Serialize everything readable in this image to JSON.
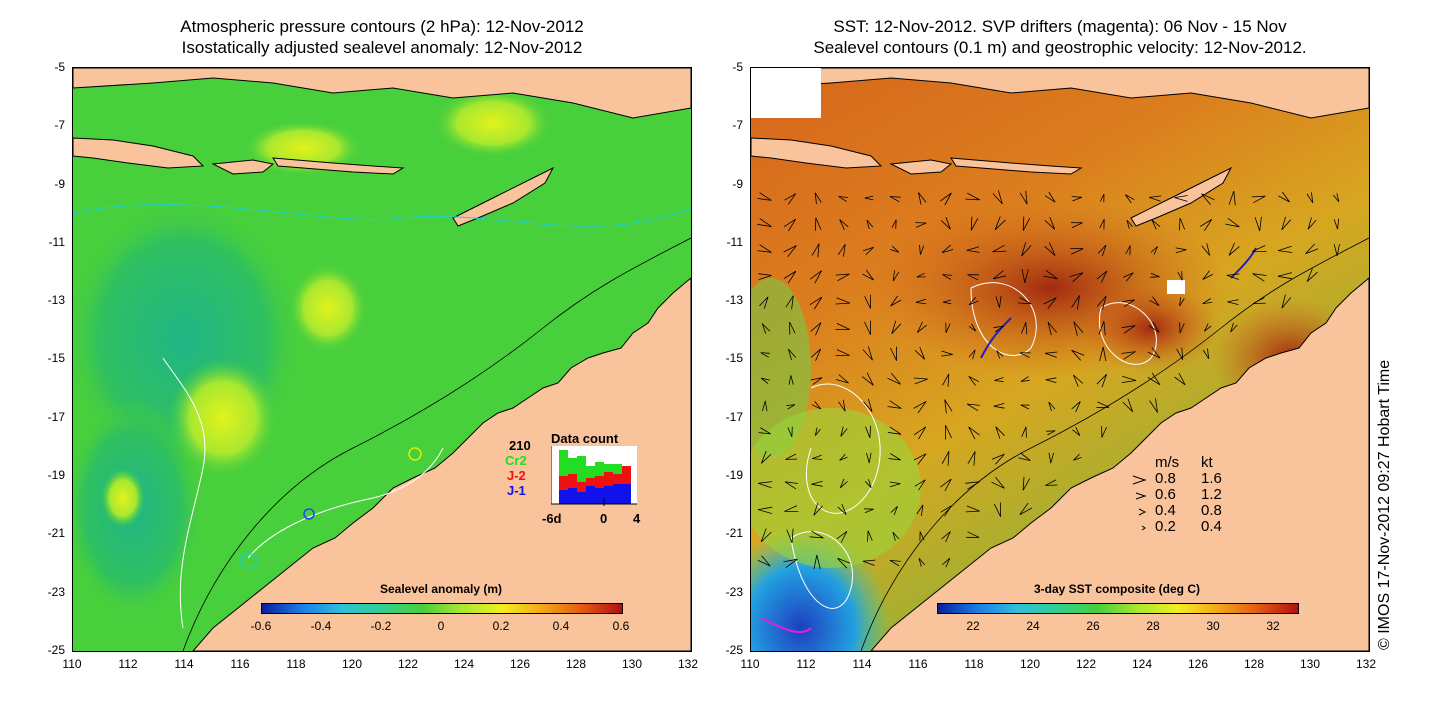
{
  "left_panel": {
    "title_line1": "Atmospheric pressure contours (2 hPa): 12-Nov-2012",
    "title_line2": "Isostatically adjusted sealevel anomaly: 12-Nov-2012",
    "colorbar_title": "Sealevel anomaly (m)",
    "colorbar_ticks": [
      "-0.6",
      "-0.4",
      "-0.2",
      "0",
      "0.2",
      "0.4",
      "0.6"
    ],
    "data_count": {
      "title": "Data count",
      "total": "210",
      "satellites": [
        {
          "name": "Cr2",
          "color": "#22dd22"
        },
        {
          "name": "J-2",
          "color": "#ee1111"
        },
        {
          "name": "J-1",
          "color": "#1111ee"
        }
      ],
      "xticks": [
        "-6d",
        "0",
        "4"
      ]
    }
  },
  "right_panel": {
    "title_line1": "SST: 12-Nov-2012. SVP drifters (magenta): 06 Nov - 15 Nov",
    "title_line2": "Sealevel contours (0.1 m) and geostrophic velocity: 12-Nov-2012.",
    "colorbar_title": "3-day SST composite (deg C)",
    "colorbar_ticks": [
      "22",
      "24",
      "26",
      "28",
      "30",
      "32"
    ],
    "velocity_legend": {
      "header_ms": "m/s",
      "header_kt": "kt",
      "rows": [
        {
          "ms": "0.8",
          "kt": "1.6"
        },
        {
          "ms": "0.6",
          "kt": "1.2"
        },
        {
          "ms": "0.4",
          "kt": "0.8"
        },
        {
          "ms": "0.2",
          "kt": "0.4"
        }
      ]
    }
  },
  "axes": {
    "lat_labels": [
      "-5",
      "-7",
      "-9",
      "-11",
      "-13",
      "-15",
      "-17",
      "-19",
      "-21",
      "-23",
      "-25"
    ],
    "lon_labels": [
      "110",
      "112",
      "114",
      "116",
      "118",
      "120",
      "122",
      "124",
      "126",
      "128",
      "130",
      "132"
    ]
  },
  "credit": "© IMOS 17-Nov-2012 09:27 Hobart Time",
  "colors": {
    "land": "#f9c39b",
    "sla_ocean": "#3fd33f",
    "sst_warm": "#d8681c",
    "sst_cool": "#1fa6e0"
  }
}
